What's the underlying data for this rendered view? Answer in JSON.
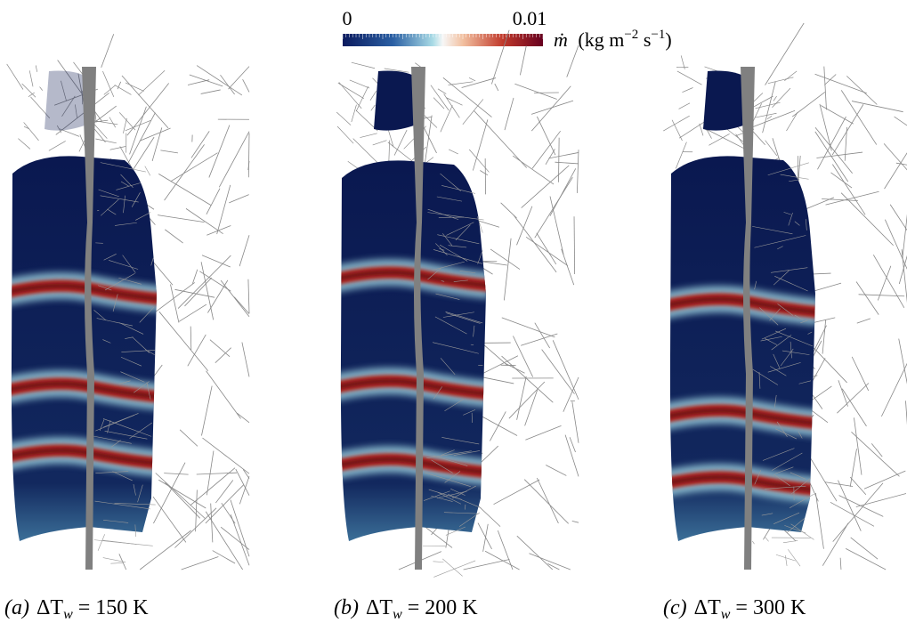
{
  "colorbar": {
    "min_label": "0",
    "max_label": "0.01",
    "quantity": "ṁ",
    "unit_open": "(kg m",
    "unit_exp1": "−2",
    "unit_mid": " s",
    "unit_exp2": "−1",
    "unit_close": ")"
  },
  "panels": [
    {
      "label": "(a)",
      "symbol": "ΔT",
      "subscript": "w",
      "value_text": "= 150 K"
    },
    {
      "label": "(b)",
      "symbol": "ΔT",
      "subscript": "w",
      "value_text": "= 200 K"
    },
    {
      "label": "(c)",
      "symbol": "ΔT",
      "subscript": "w",
      "value_text": "= 300 K"
    }
  ]
}
